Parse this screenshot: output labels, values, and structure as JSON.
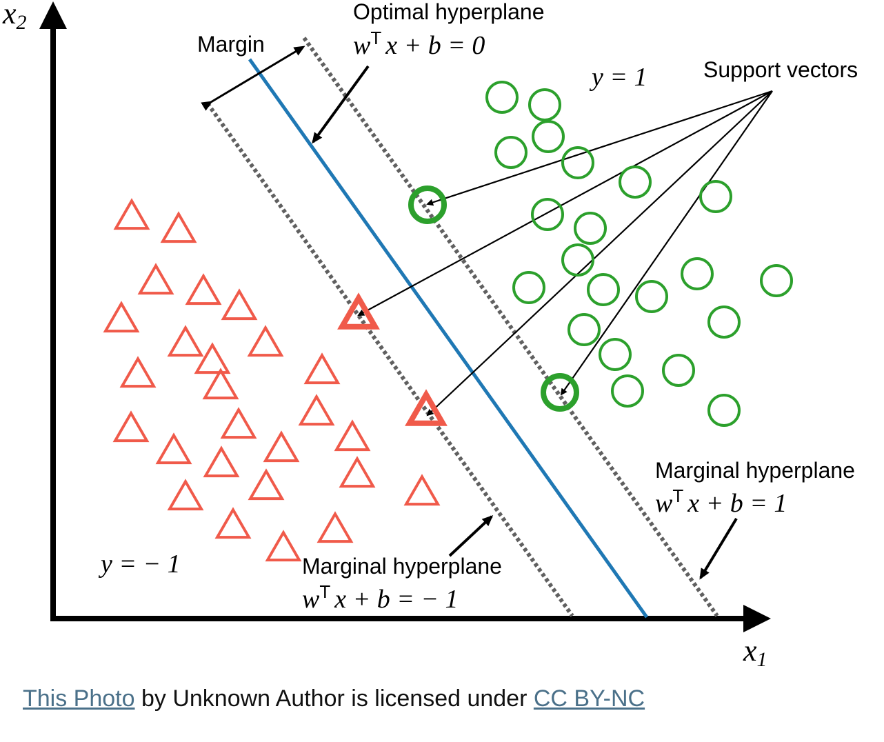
{
  "axes": {
    "x_label_main": "x",
    "x_label_sub": "1",
    "y_label_main": "x",
    "y_label_sub": "2"
  },
  "labels": {
    "margin": "Margin",
    "optimal_hyperplane_title": "Optimal hyperplane",
    "optimal_eq_w": "w",
    "optimal_eq_T": "T",
    "optimal_eq_rest": "x + b = 0",
    "class_pos": "y = 1",
    "class_neg": "y = − 1",
    "support_vectors": "Support vectors",
    "marginal_pos_title": "Marginal hyperplane",
    "marginal_pos_eq_w": "w",
    "marginal_pos_eq_T": "T",
    "marginal_pos_eq_rest": "x + b = 1",
    "marginal_neg_title": "Marginal hyperplane",
    "marginal_neg_eq_w": "w",
    "marginal_neg_eq_T": "T",
    "marginal_neg_eq_rest": "x + b = − 1"
  },
  "caption": {
    "link1": "This Photo",
    "middle": " by Unknown Author is licensed under ",
    "link2": "CC BY-NC"
  },
  "colors": {
    "hyperplane": "#1f78b4",
    "margin_lines": "#606060",
    "positive_class": "#2ca02c",
    "negative_class": "#f05a4a",
    "axes": "#000000"
  }
}
